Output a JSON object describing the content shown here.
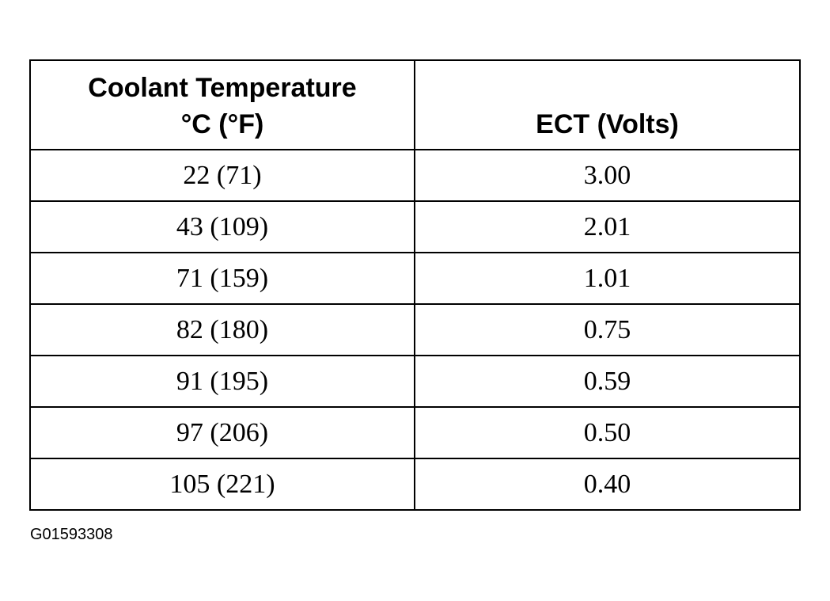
{
  "table": {
    "columns": [
      {
        "lines": [
          "Coolant Temperature",
          "°C (°F)"
        ]
      },
      {
        "lines": [
          "ECT (Volts)"
        ]
      }
    ],
    "rows": [
      [
        "22 (71)",
        "3.00"
      ],
      [
        "43 (109)",
        "2.01"
      ],
      [
        "71 (159)",
        "1.01"
      ],
      [
        "82 (180)",
        "0.75"
      ],
      [
        "91 (195)",
        "0.59"
      ],
      [
        "97 (206)",
        "0.50"
      ],
      [
        "105 (221)",
        "0.40"
      ]
    ]
  },
  "figure_id": "G01593308"
}
